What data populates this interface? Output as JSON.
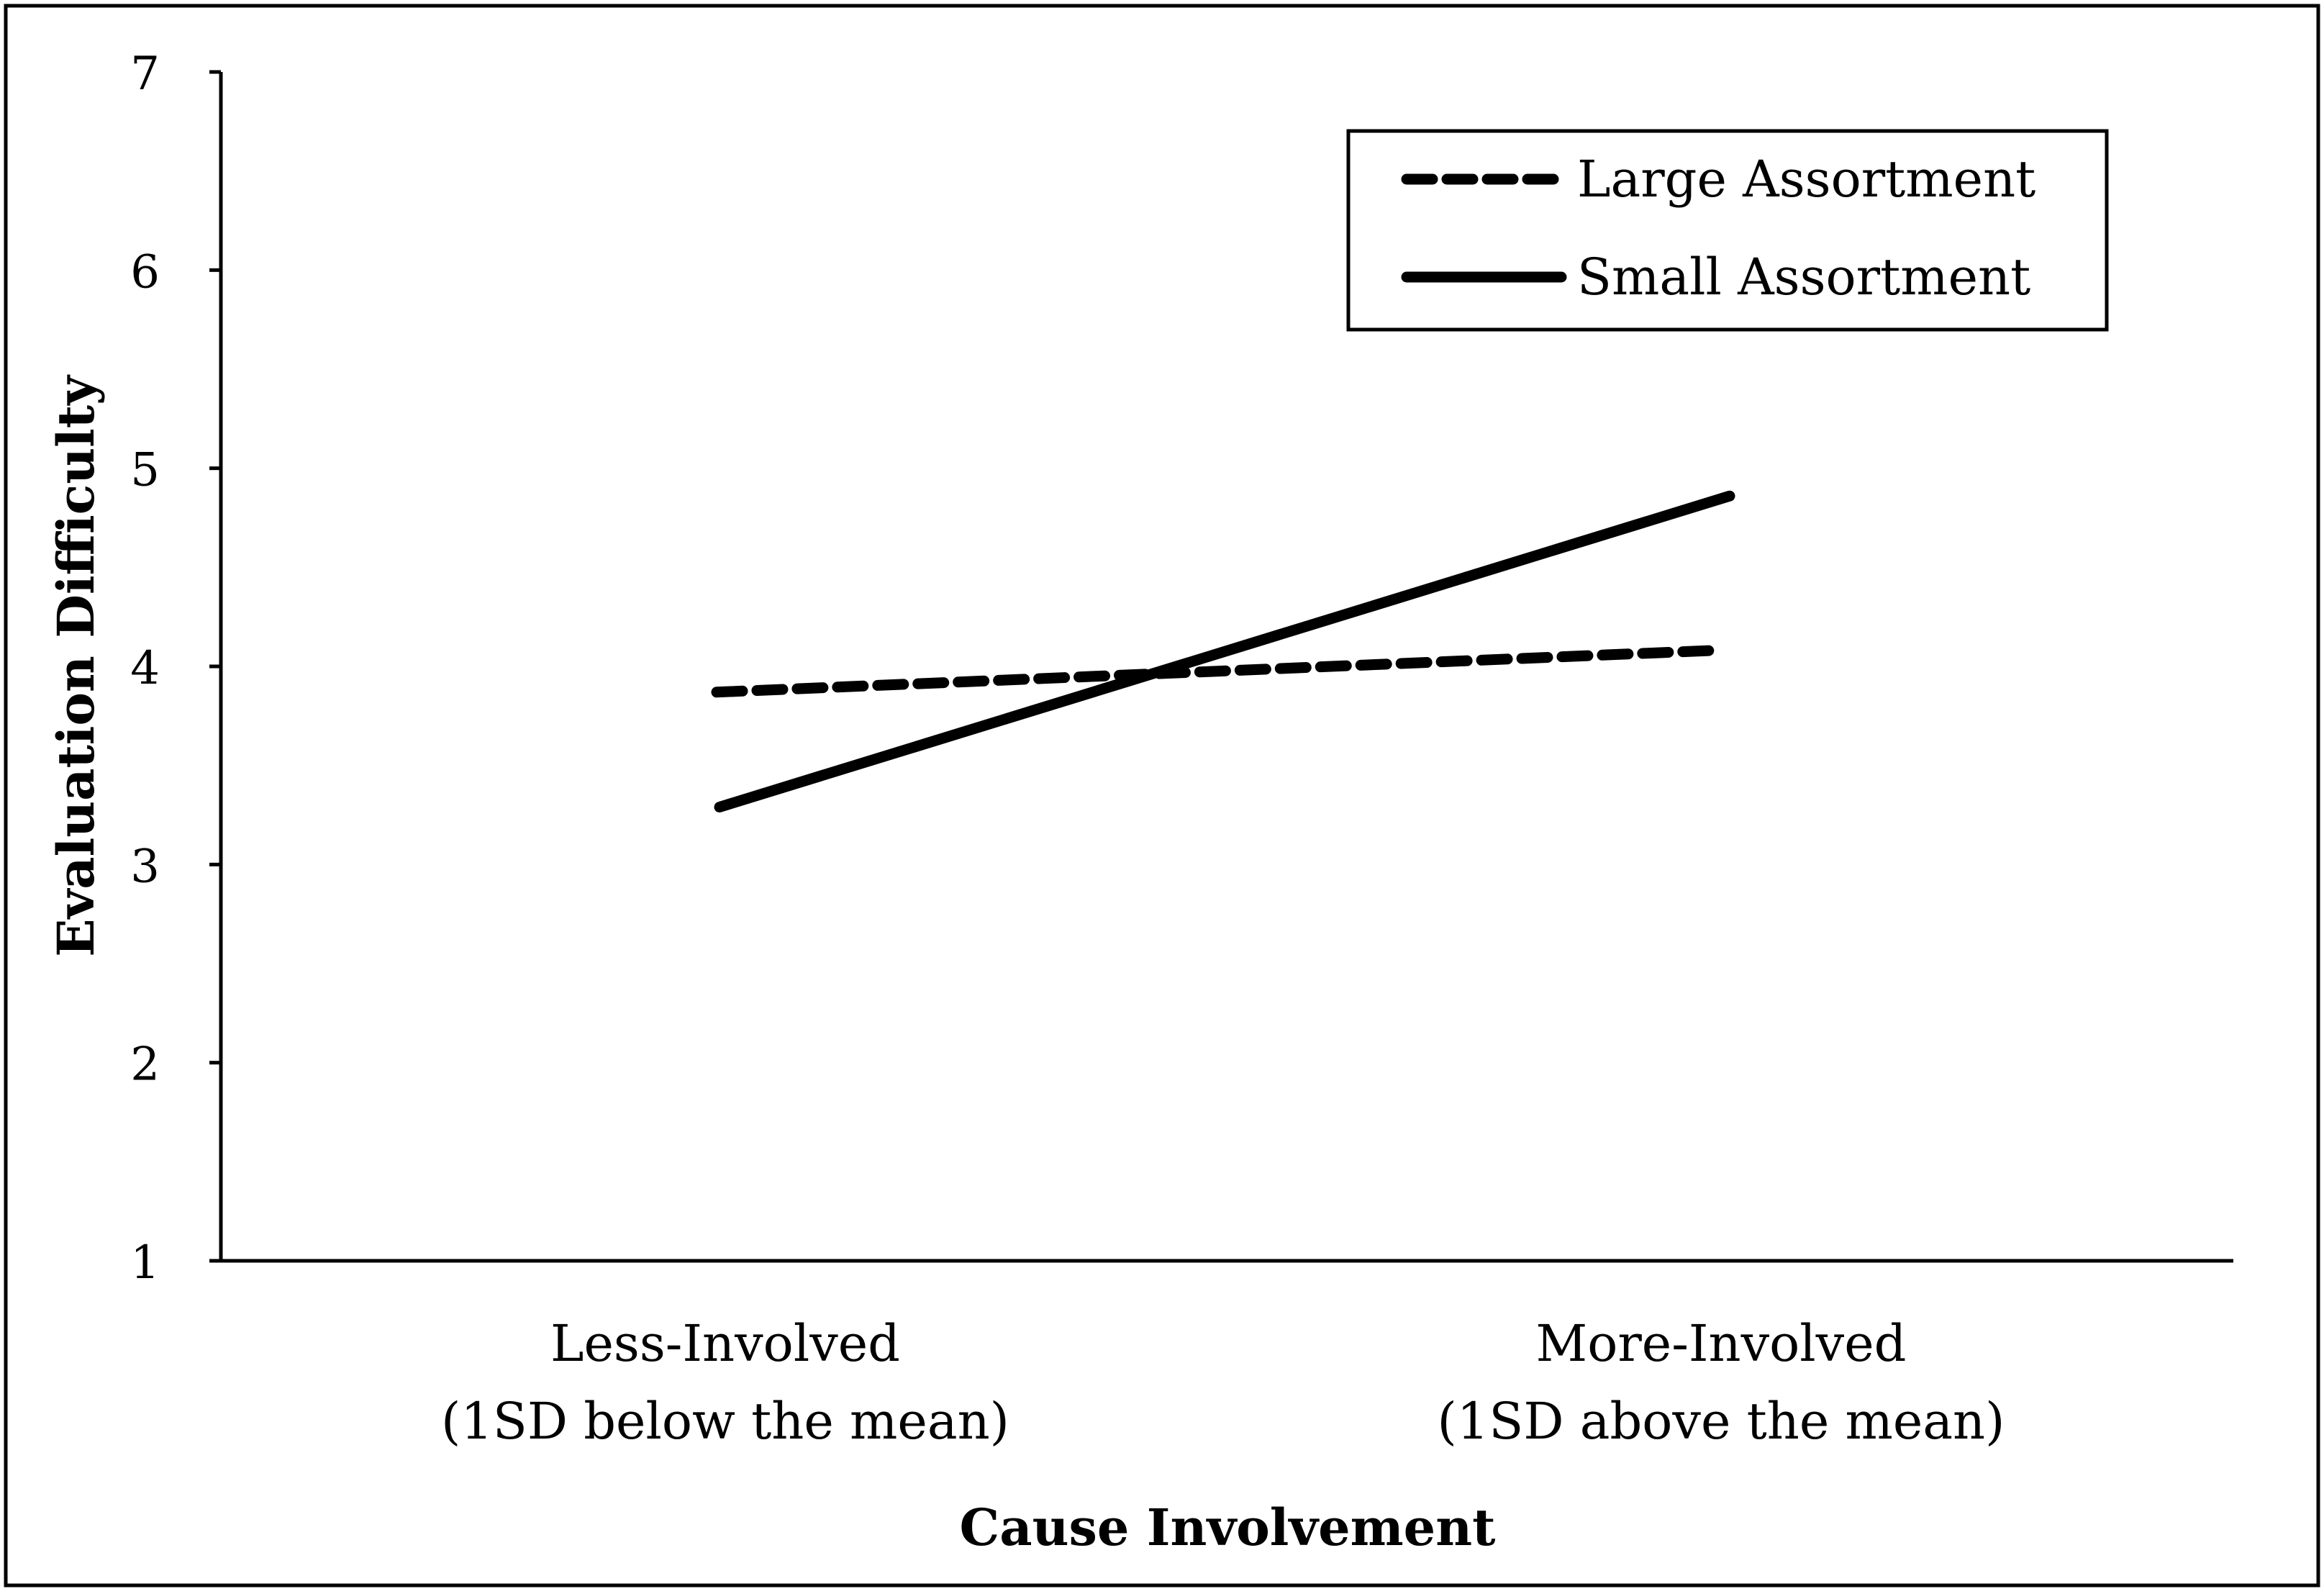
{
  "chart_data": {
    "type": "line",
    "title": "",
    "xlabel": "Cause Involvement",
    "ylabel": "Evaluation Difficulty",
    "ylim": [
      1,
      7
    ],
    "yticks": [
      "1",
      "2",
      "3",
      "4",
      "5",
      "6",
      "7"
    ],
    "categories": [
      [
        "Less-Involved",
        "(1SD below the mean)"
      ],
      [
        "More-Involved",
        "(1SD above the mean)"
      ]
    ],
    "series": [
      {
        "name": "Large Assortment",
        "style": "dashed",
        "values": [
          3.87,
          4.08
        ]
      },
      {
        "name": "Small Assortment",
        "style": "solid",
        "values": [
          3.29,
          4.86
        ]
      }
    ],
    "legend_position": "top-right",
    "grid": false,
    "line_color": "#000000"
  }
}
